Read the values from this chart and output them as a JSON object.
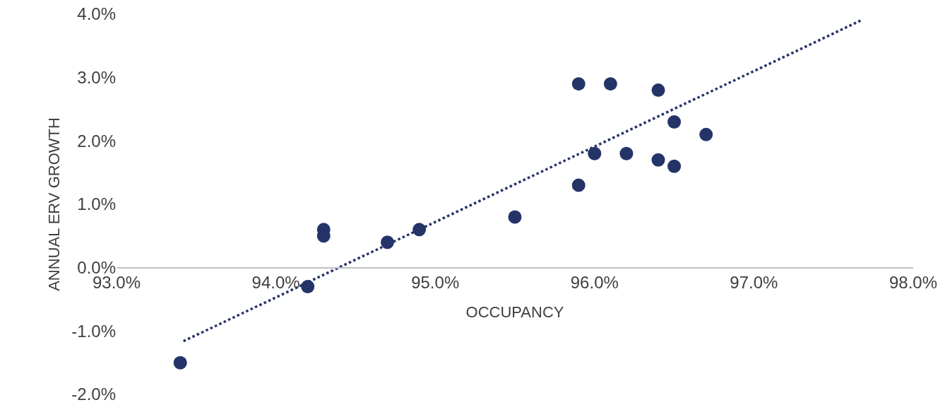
{
  "chart_data": {
    "type": "scatter",
    "xlabel": "OCCUPANCY",
    "ylabel": "ANNUAL ERV GROWTH",
    "xlim": [
      93,
      98
    ],
    "ylim": [
      -2,
      4
    ],
    "xticks": [
      {
        "value": 93,
        "label": "93.0%"
      },
      {
        "value": 94,
        "label": "94.0%"
      },
      {
        "value": 95,
        "label": "95.0%"
      },
      {
        "value": 96,
        "label": "96.0%"
      },
      {
        "value": 97,
        "label": "97.0%"
      },
      {
        "value": 98,
        "label": "98.0%"
      }
    ],
    "yticks": [
      {
        "value": -2,
        "label": "-2.0%"
      },
      {
        "value": -1,
        "label": "-1.0%"
      },
      {
        "value": 0,
        "label": "0.0%"
      },
      {
        "value": 1,
        "label": "1.0%"
      },
      {
        "value": 2,
        "label": "2.0%"
      },
      {
        "value": 3,
        "label": "3.0%"
      },
      {
        "value": 4,
        "label": "4.0%"
      }
    ],
    "grid": false,
    "marker": "circle",
    "series": [
      {
        "color": "#253468",
        "x": [
          93.4,
          94.2,
          94.3,
          94.3,
          94.7,
          94.9,
          95.5,
          95.9,
          96.1,
          96.4,
          96.5,
          96.7,
          96.0,
          96.2,
          96.4,
          96.5,
          95.9
        ],
        "values": [
          -1.5,
          -0.3,
          0.6,
          0.5,
          0.4,
          0.6,
          0.8,
          2.9,
          2.9,
          2.8,
          2.3,
          2.1,
          1.8,
          1.8,
          1.7,
          1.6,
          1.3
        ]
      },
      {
        "type": "line",
        "color": "#253468",
        "line_style": "dotted",
        "marker": "none",
        "x": [
          93.42,
          97.68
        ],
        "values": [
          -1.16,
          3.91
        ]
      }
    ]
  }
}
